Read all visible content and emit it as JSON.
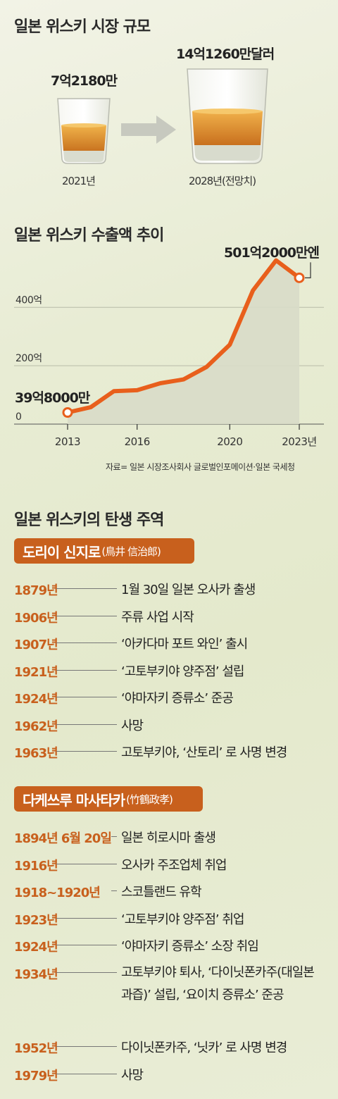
{
  "market": {
    "title": "일본 위스키 시장 규모",
    "left": {
      "value_label": "7억2180만",
      "year": "2021년"
    },
    "right": {
      "value_label": "14억1260만달러",
      "year": "2028년(전망치)"
    }
  },
  "export": {
    "title": "일본 위스키 수출액 추이",
    "start_label": "39억8000만",
    "end_label": "501억2000만엔",
    "source": "자료= 일본 시장조사회사 글로벌인포메이션·일본 국세청"
  },
  "chart_data": {
    "type": "area",
    "title": "일본 위스키 수출액 추이",
    "x": [
      2013,
      2014,
      2015,
      2016,
      2017,
      2018,
      2019,
      2020,
      2021,
      2022,
      2023
    ],
    "series": [
      {
        "values": [
          39.8,
          58,
          113,
          116,
          140,
          153,
          196,
          272,
          458,
          561,
          501.2
        ]
      }
    ],
    "x_ticks": [
      "2013",
      "2016",
      "2020",
      "2023년"
    ],
    "y_ticks": [
      "0",
      "200억",
      "400억"
    ],
    "y_tick_values": [
      0,
      200,
      400
    ],
    "xlim": [
      2013,
      2023
    ],
    "ylim": [
      0,
      560
    ],
    "grid": true,
    "line_color": "#e85f1c",
    "fill_color": "#d8dbc8"
  },
  "timeline": {
    "title": "일본 위스키의 탄생 주역",
    "persons": [
      {
        "name": "도리이 신지로",
        "hanja": "(鳥井 信治郎)",
        "events": [
          {
            "year": "1879년",
            "text": "1월 30일 일본 오사카 출생"
          },
          {
            "year": "1906년",
            "text": "주류 사업 시작"
          },
          {
            "year": "1907년",
            "text": "‘아카다마 포트 와인’ 출시"
          },
          {
            "year": "1921년",
            "text": "‘고토부키야 양주점’ 설립"
          },
          {
            "year": "1924년",
            "text": "‘야마자키 증류소’ 준공"
          },
          {
            "year": "1962년",
            "text": "사망"
          },
          {
            "year": "1963년",
            "text": "고토부키야, ‘산토리’ 로 사명 변경"
          }
        ]
      },
      {
        "name": "다케쓰루 마사타카",
        "hanja": "(竹鶴政孝)",
        "events": [
          {
            "year": "1894년 6월 20일",
            "text": "일본 히로시마 출생"
          },
          {
            "year": "1916년",
            "text": "오사카 주조업체 취업"
          },
          {
            "year": "1918~1920년",
            "text": "스코틀랜드 유학"
          },
          {
            "year": "1923년",
            "text": "‘고토부키야 양주점’ 취업"
          },
          {
            "year": "1924년",
            "text": "‘야마자키 증류소’ 소장 취임"
          },
          {
            "year": "1934년",
            "text": "고토부키야 퇴사, ‘다이닛폰카주(대일본과즙)’ 설립, ‘요이치 증류소’ 준공"
          },
          {
            "year": "1952년",
            "text": "다이닛폰카주, ‘닛카’ 로 사명 변경"
          },
          {
            "year": "1979년",
            "text": "사망"
          }
        ]
      }
    ]
  }
}
